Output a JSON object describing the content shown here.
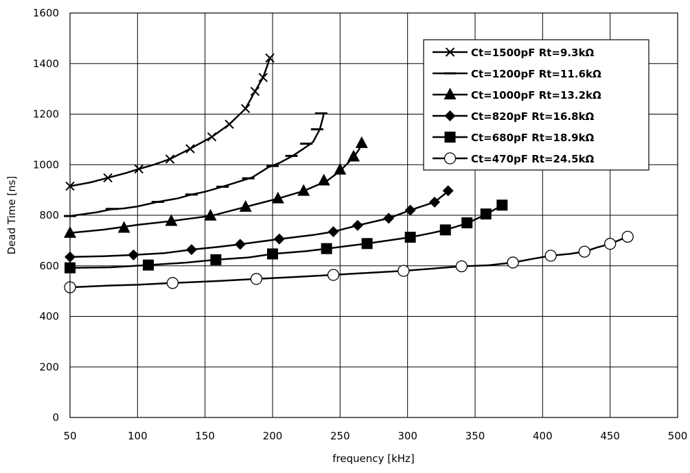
{
  "chart_data": {
    "type": "line",
    "title": "",
    "xlabel": "frequency [kHz]",
    "ylabel": "Dead Time [ns]",
    "xlim": [
      50,
      500
    ],
    "ylim": [
      0,
      1600
    ],
    "x_ticks": [
      "50",
      "100",
      "150",
      "200",
      "250",
      "300",
      "350",
      "400",
      "450",
      "500"
    ],
    "y_ticks": [
      "0",
      "200",
      "400",
      "600",
      "800",
      "1000",
      "1200",
      "1400",
      "1600"
    ],
    "grid": true,
    "legend_position": "top-right",
    "series": [
      {
        "name": "Ct=1500pF Rt=9.3kΩ",
        "marker": "x",
        "line": [
          [
            50,
            915
          ],
          [
            65,
            930
          ],
          [
            78,
            948
          ],
          [
            92,
            968
          ],
          [
            101,
            983
          ],
          [
            112,
            1000
          ],
          [
            124,
            1022
          ],
          [
            139,
            1063
          ],
          [
            155,
            1110
          ],
          [
            168,
            1160
          ],
          [
            180,
            1222
          ],
          [
            187,
            1290
          ],
          [
            193,
            1345
          ],
          [
            196,
            1390
          ],
          [
            198,
            1422
          ]
        ],
        "x": [
          50,
          78,
          101,
          124,
          139,
          155,
          168,
          180,
          187,
          193,
          198
        ],
        "y": [
          915,
          948,
          983,
          1022,
          1063,
          1110,
          1160,
          1222,
          1290,
          1345,
          1422
        ]
      },
      {
        "name": "Ct=1200pF Rt=11.6kΩ",
        "marker": "dash",
        "line": [
          [
            50,
            797
          ],
          [
            70,
            812
          ],
          [
            80,
            823
          ],
          [
            90,
            827
          ],
          [
            100,
            835
          ],
          [
            115,
            853
          ],
          [
            130,
            867
          ],
          [
            140,
            882
          ],
          [
            150,
            893
          ],
          [
            163,
            913
          ],
          [
            172,
            928
          ],
          [
            185,
            950
          ],
          [
            197,
            990
          ],
          [
            205,
            1007
          ],
          [
            215,
            1035
          ],
          [
            222,
            1060
          ],
          [
            230,
            1090
          ],
          [
            235,
            1140
          ],
          [
            237,
            1180
          ],
          [
            238,
            1203
          ]
        ],
        "x": [
          50,
          81,
          115,
          140,
          163,
          182,
          200,
          214,
          225,
          233,
          236
        ],
        "y": [
          797,
          825,
          853,
          882,
          913,
          946,
          995,
          1035,
          1083,
          1140,
          1203
        ]
      },
      {
        "name": "Ct=1000pF Rt=13.2kΩ",
        "marker": "triangle",
        "line": [
          [
            50,
            730
          ],
          [
            75,
            743
          ],
          [
            100,
            762
          ],
          [
            125,
            777
          ],
          [
            155,
            798
          ],
          [
            180,
            833
          ],
          [
            204,
            866
          ],
          [
            223,
            896
          ],
          [
            240,
            935
          ],
          [
            250,
            975
          ],
          [
            260,
            1030
          ],
          [
            264,
            1060
          ],
          [
            266,
            1085
          ]
        ],
        "x": [
          50,
          90,
          125,
          154,
          180,
          204,
          223,
          238,
          250,
          260,
          266
        ],
        "y": [
          730,
          750,
          777,
          798,
          833,
          866,
          896,
          937,
          980,
          1032,
          1085
        ]
      },
      {
        "name": "Ct=820pF Rt=16.8kΩ",
        "marker": "diamond",
        "line": [
          [
            50,
            635
          ],
          [
            75,
            638
          ],
          [
            97,
            643
          ],
          [
            120,
            650
          ],
          [
            140,
            664
          ],
          [
            160,
            675
          ],
          [
            176,
            685
          ],
          [
            205,
            706
          ],
          [
            230,
            722
          ],
          [
            245,
            735
          ],
          [
            263,
            760
          ],
          [
            286,
            788
          ],
          [
            302,
            820
          ],
          [
            320,
            852
          ],
          [
            330,
            895
          ]
        ],
        "x": [
          50,
          97,
          140,
          176,
          205,
          245,
          263,
          286,
          302,
          320,
          330
        ],
        "y": [
          635,
          643,
          664,
          685,
          706,
          735,
          760,
          788,
          820,
          852,
          897
        ]
      },
      {
        "name": "Ct=680pF Rt=18.9kΩ",
        "marker": "square",
        "line": [
          [
            50,
            592
          ],
          [
            80,
            594
          ],
          [
            108,
            603
          ],
          [
            135,
            612
          ],
          [
            158,
            624
          ],
          [
            182,
            633
          ],
          [
            200,
            647
          ],
          [
            225,
            658
          ],
          [
            240,
            668
          ],
          [
            270,
            688
          ],
          [
            302,
            713
          ],
          [
            318,
            730
          ],
          [
            328,
            742
          ],
          [
            344,
            768
          ],
          [
            358,
            803
          ],
          [
            370,
            840
          ]
        ],
        "x": [
          50,
          108,
          158,
          200,
          240,
          270,
          302,
          328,
          344,
          358,
          370
        ],
        "y": [
          592,
          603,
          624,
          647,
          668,
          688,
          713,
          742,
          770,
          805,
          840
        ]
      },
      {
        "name": "Ct=470pF Rt=24.5kΩ",
        "marker": "circle",
        "line": [
          [
            50,
            515
          ],
          [
            80,
            522
          ],
          [
            100,
            525
          ],
          [
            126,
            532
          ],
          [
            160,
            540
          ],
          [
            188,
            548
          ],
          [
            215,
            555
          ],
          [
            245,
            564
          ],
          [
            270,
            572
          ],
          [
            297,
            580
          ],
          [
            340,
            598
          ],
          [
            360,
            602
          ],
          [
            378,
            613
          ],
          [
            392,
            627
          ],
          [
            406,
            640
          ],
          [
            420,
            647
          ],
          [
            431,
            656
          ],
          [
            440,
            672
          ],
          [
            450,
            687
          ],
          [
            463,
            715
          ]
        ],
        "x": [
          50,
          126,
          188,
          245,
          297,
          340,
          378,
          406,
          431,
          450,
          463
        ],
        "y": [
          515,
          532,
          548,
          564,
          580,
          598,
          613,
          640,
          656,
          687,
          715
        ]
      }
    ]
  }
}
